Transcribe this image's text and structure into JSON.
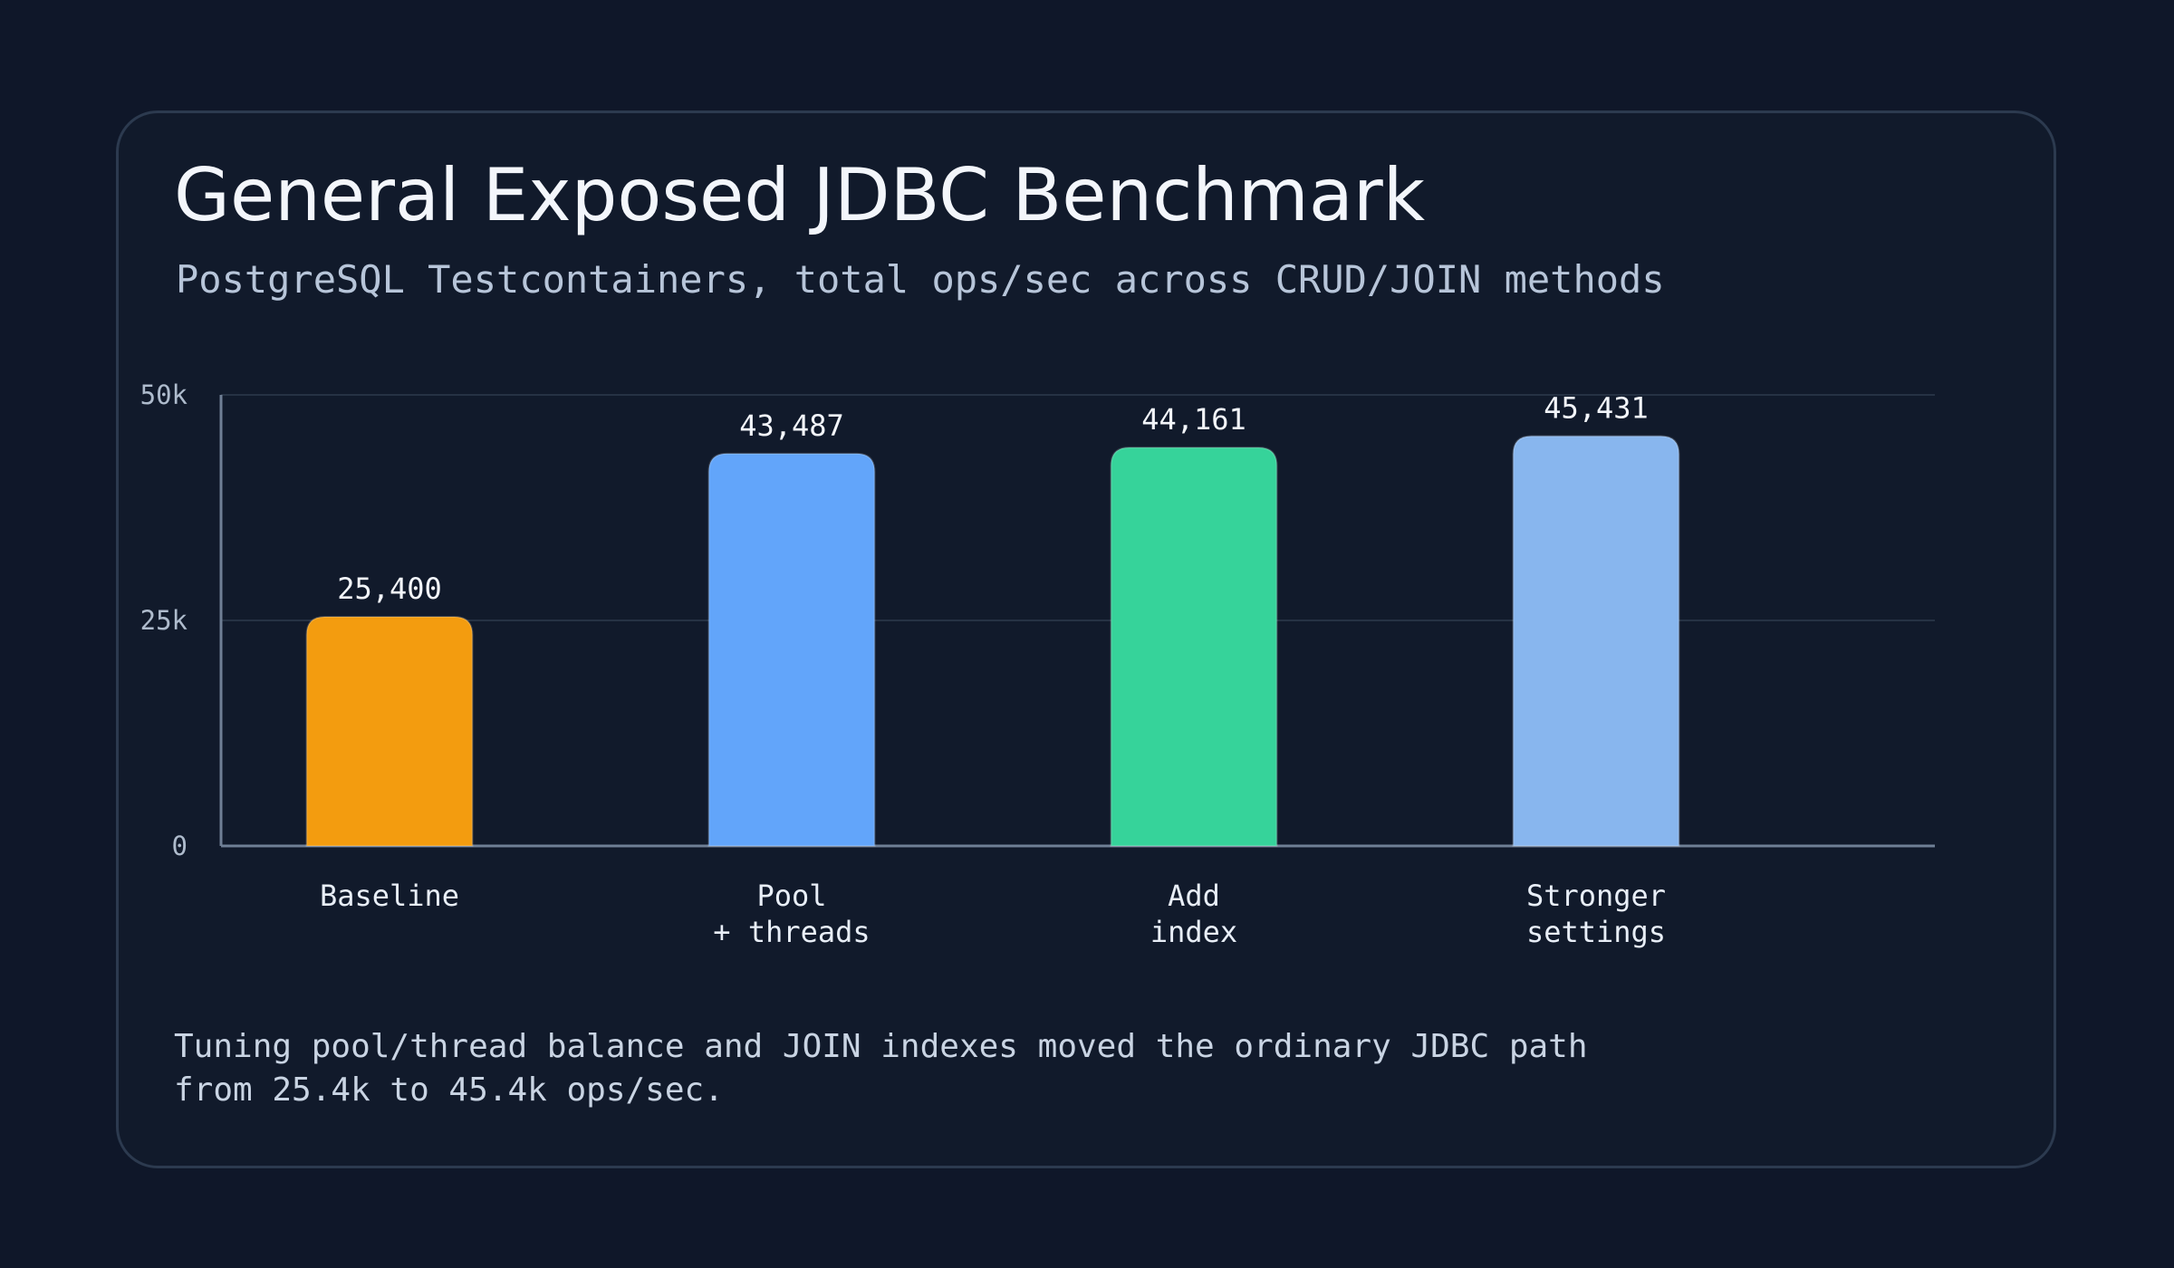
{
  "card": {
    "title": "General Exposed JDBC Benchmark",
    "subtitle": "PostgreSQL Testcontainers, total ops/sec across CRUD/JOIN methods",
    "note_lines": [
      "Tuning pool/thread balance and JOIN indexes moved the ordinary JDBC path",
      "from 25.4k to 45.4k ops/sec."
    ]
  },
  "colors": {
    "background": "#0f1729",
    "card": "#111a2b",
    "baseline": "#f39c0f",
    "pool_threads": "#62a5fa",
    "add_index": "#36d39a",
    "stronger_settings": "#88b6ee",
    "axis": "#6f7f95",
    "grid": "#263244"
  },
  "chart_data": {
    "type": "bar",
    "categories": [
      [
        "Baseline"
      ],
      [
        "Pool",
        "+ threads"
      ],
      [
        "Add",
        "index"
      ],
      [
        "Stronger",
        "settings"
      ]
    ],
    "values": [
      25400,
      43487,
      44161,
      45431
    ],
    "value_labels": [
      "25,400",
      "43,487",
      "44,161",
      "45,431"
    ],
    "colors": [
      "#f39c0f",
      "#62a5fa",
      "#36d39a",
      "#88b6ee"
    ],
    "ylim": [
      0,
      50000
    ],
    "y_ticks": [
      {
        "value": 0,
        "label": "0"
      },
      {
        "value": 25000,
        "label": "25k"
      },
      {
        "value": 50000,
        "label": "50k"
      }
    ],
    "grid": true,
    "title": "",
    "xlabel": "",
    "ylabel": ""
  }
}
